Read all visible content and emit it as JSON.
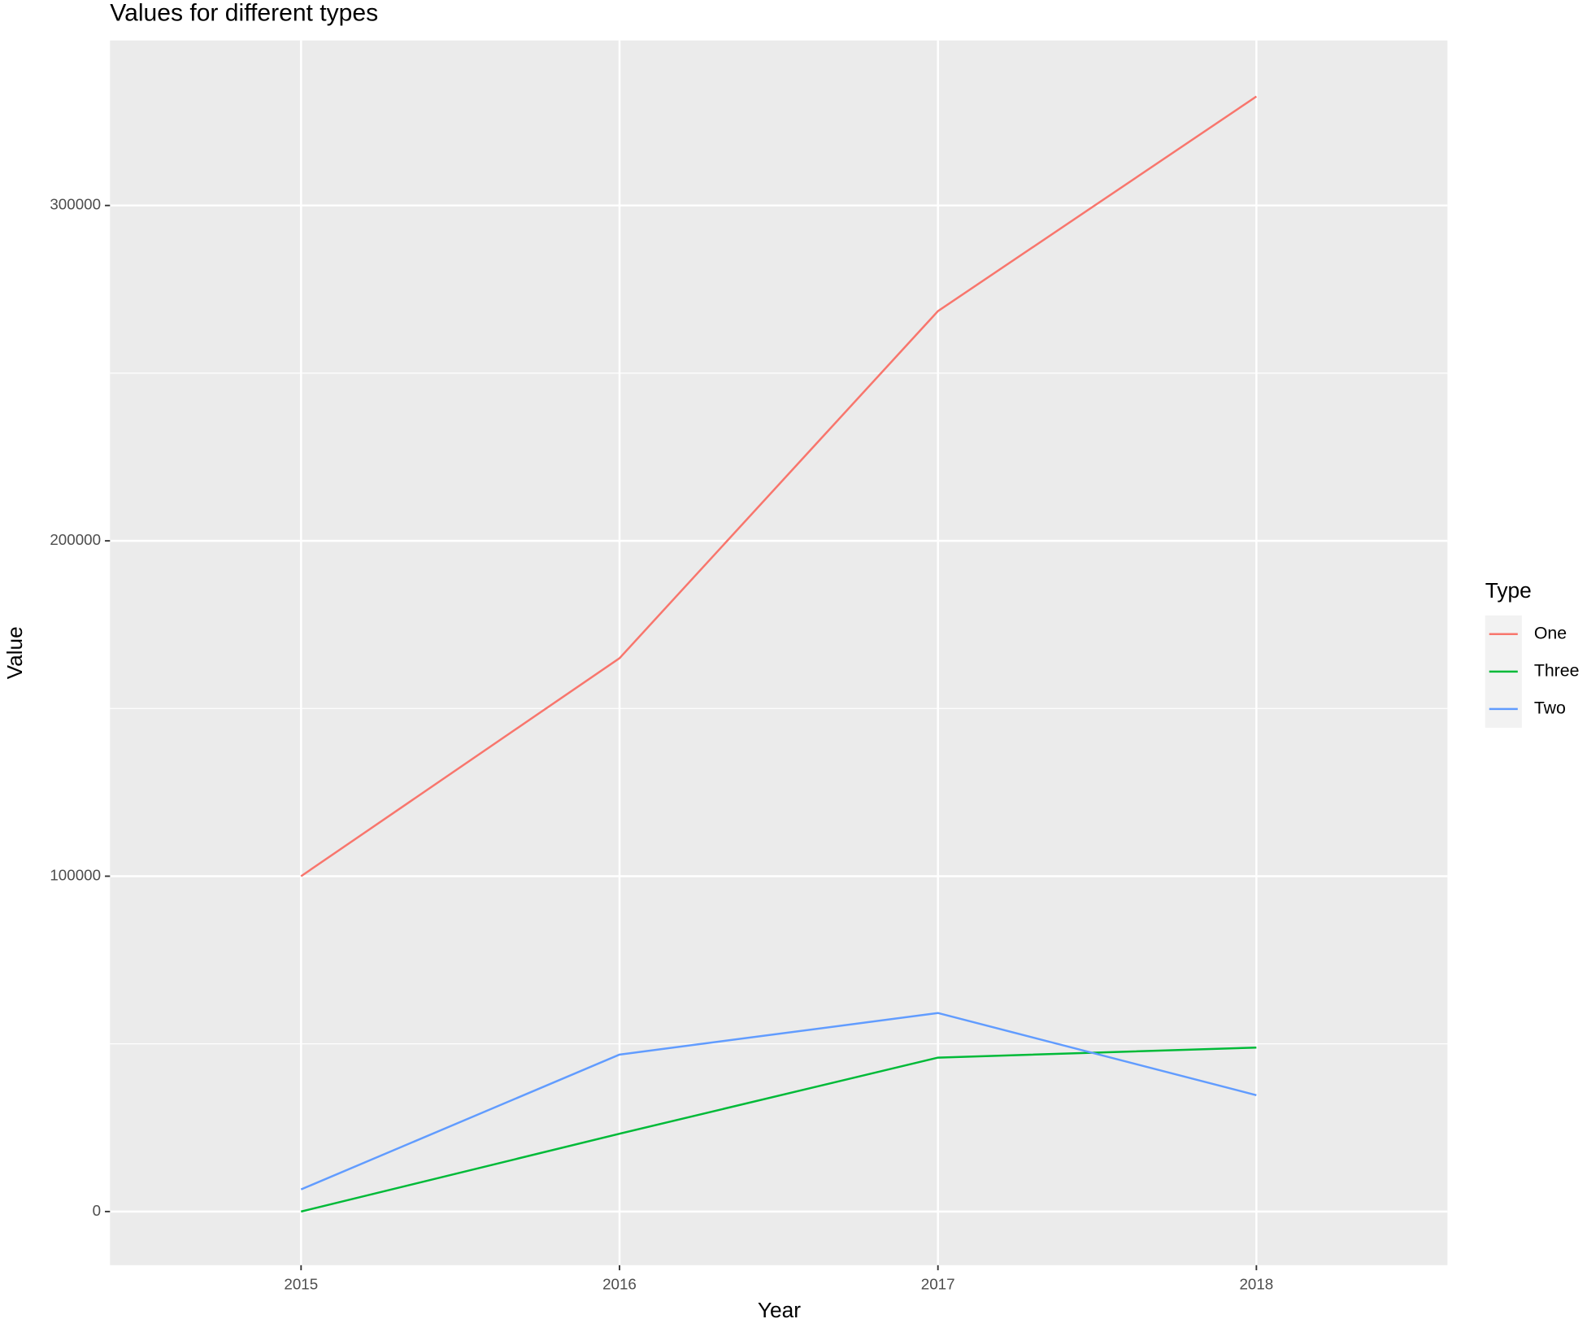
{
  "chart_data": {
    "type": "line",
    "title": "Values for different types",
    "x_label": "Year",
    "y_label": "Value",
    "legend_title": "Type",
    "x": [
      2015,
      2016,
      2017,
      2018
    ],
    "series": [
      {
        "name": "One",
        "color": "#F8766D",
        "values": [
          100000,
          165000,
          268500,
          332500
        ]
      },
      {
        "name": "Three",
        "color": "#00BA38",
        "values": [
          0,
          23200,
          45900,
          48900
        ]
      },
      {
        "name": "Two",
        "color": "#619CFF",
        "values": [
          6600,
          46800,
          59200,
          34700
        ]
      }
    ],
    "xlim": [
      2014.4,
      2018.6
    ],
    "xticks": [
      2015,
      2016,
      2017,
      2018
    ],
    "ylim": [
      -16000,
      349200
    ],
    "yticks": [
      0,
      100000,
      200000,
      300000
    ],
    "y_minor_ticks": [
      50000,
      150000,
      250000
    ],
    "grid": true,
    "legend_position": "right"
  }
}
